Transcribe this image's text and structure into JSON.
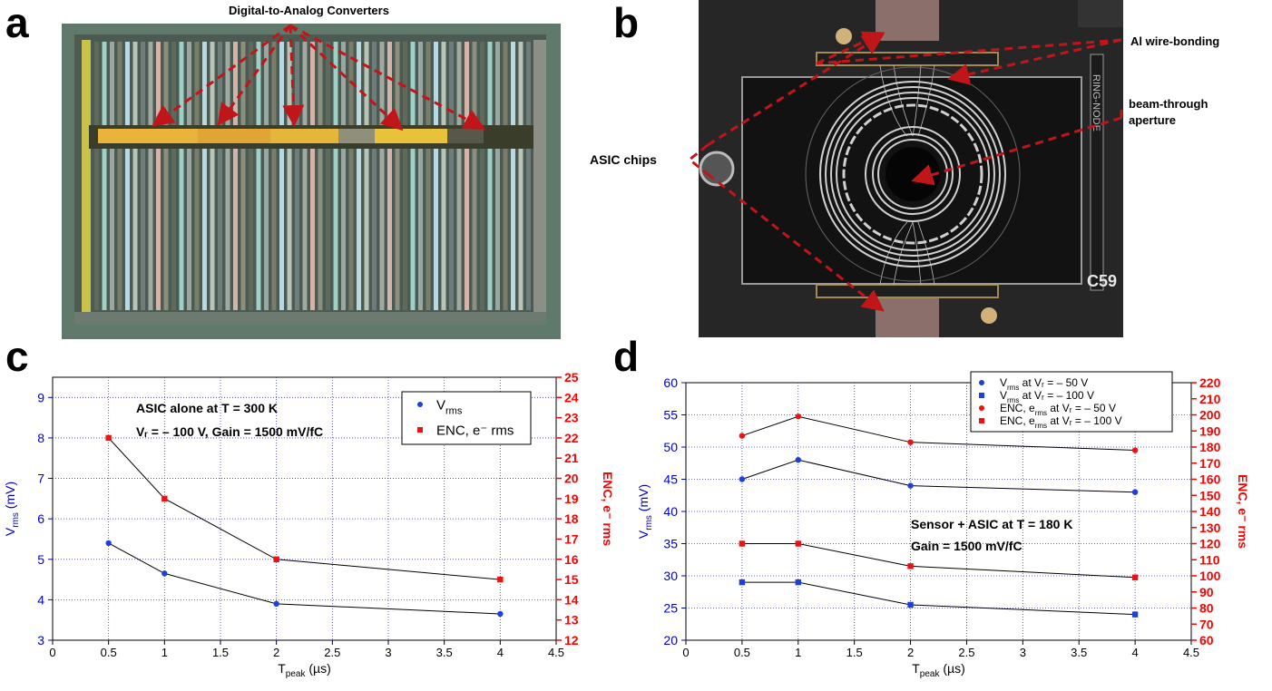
{
  "panels": {
    "a": {
      "letter": "a",
      "callout": "Digital-to-Analog Converters"
    },
    "b": {
      "letter": "b",
      "callouts": {
        "wire_bonding": "Al wire-bonding",
        "aperture": "beam-through aperture",
        "asic_chips": "ASIC chips"
      },
      "board_text": {
        "c59": "C59",
        "ring_node": "RING-NODE"
      }
    },
    "c": {
      "letter": "c",
      "annotations": {
        "line1": "ASIC alone at T = 300 K",
        "line2": "Vᵣ = – 100 V, Gain = 1500 mV/fC"
      }
    },
    "d": {
      "letter": "d",
      "annotations": {
        "line1": "Sensor + ASIC at T = 180 K",
        "line2": "Gain = 1500 mV/fC"
      }
    }
  },
  "colors": {
    "left_axis": "#0000cc",
    "right_axis": "#ff0000",
    "marker_blue": "#1f3fdd",
    "marker_red": "#ee1111",
    "grid": "#3333cc",
    "arrow": "#c0161a"
  },
  "chart_data": [
    {
      "id": "c",
      "type": "line",
      "x_label": "T",
      "x_label_sub": "peak",
      "x_label_unit": " (µs)",
      "y_label": "V",
      "y_label_sub": "rms",
      "y_label_unit": " (mV)",
      "y2_label": "ENC, e⁻ rms",
      "xlim": [
        0,
        4.5
      ],
      "ylim": [
        3,
        9.5
      ],
      "y2lim": [
        12,
        25
      ],
      "grid": true,
      "legend_position": "top-right",
      "x_ticks": [
        "0",
        "0.5",
        "1",
        "1.5",
        "2",
        "2.5",
        "3",
        "3.5",
        "4",
        "4.5"
      ],
      "y_ticks": [
        "3",
        "4",
        "5",
        "6",
        "7",
        "8",
        "9"
      ],
      "y2_ticks": [
        "12",
        "13",
        "14",
        "15",
        "16",
        "17",
        "18",
        "19",
        "20",
        "21",
        "22",
        "23",
        "24",
        "25"
      ],
      "series": [
        {
          "name": "V",
          "name_sub": "rms",
          "name_rest": "",
          "axis": "left",
          "marker": "circle",
          "color": "#1f3fdd",
          "x": [
            0.5,
            1,
            2,
            4
          ],
          "y": [
            5.4,
            4.65,
            3.9,
            3.65
          ]
        },
        {
          "name": "ENC, e⁻ rms",
          "name_sub": "",
          "name_rest": "",
          "axis": "right",
          "marker": "square",
          "color": "#ee1111",
          "x": [
            0.5,
            1,
            2,
            4
          ],
          "y": [
            22,
            19,
            16,
            15
          ]
        }
      ]
    },
    {
      "id": "d",
      "type": "line",
      "x_label": "T",
      "x_label_sub": "peak",
      "x_label_unit": " (µs)",
      "y_label": "V",
      "y_label_sub": "rms",
      "y_label_unit": " (mV)",
      "y2_label": "ENC, e⁻ rms",
      "xlim": [
        0,
        4.5
      ],
      "ylim": [
        20,
        60
      ],
      "y2lim": [
        60,
        220
      ],
      "grid": true,
      "legend_position": "top-right",
      "x_ticks": [
        "0",
        "0.5",
        "1",
        "1.5",
        "2",
        "2.5",
        "3",
        "3.5",
        "4",
        "4.5"
      ],
      "y_ticks": [
        "20",
        "25",
        "30",
        "35",
        "40",
        "45",
        "50",
        "55",
        "60"
      ],
      "y2_ticks": [
        "60",
        "70",
        "80",
        "90",
        "100",
        "110",
        "120",
        "130",
        "140",
        "150",
        "160",
        "170",
        "180",
        "190",
        "200",
        "210",
        "220"
      ],
      "series": [
        {
          "name": "V",
          "name_sub": "rms",
          "name_rest": " at Vᵣ = – 50 V",
          "axis": "left",
          "marker": "circle",
          "color": "#1f3fdd",
          "x": [
            0.5,
            1,
            2,
            4
          ],
          "y": [
            45,
            48,
            44,
            43
          ]
        },
        {
          "name": "V",
          "name_sub": "rms",
          "name_rest": " at Vᵣ = – 100 V",
          "axis": "left",
          "marker": "square",
          "color": "#1f3fdd",
          "x": [
            0.5,
            1,
            2,
            4
          ],
          "y": [
            29,
            29,
            25.5,
            24
          ]
        },
        {
          "name": "ENC, e",
          "name_sub": "rms",
          "name_rest": " at Vᵣ = – 50 V",
          "axis": "right",
          "marker": "circle",
          "color": "#ee1111",
          "x": [
            0.5,
            1,
            2,
            4
          ],
          "y": [
            187,
            199,
            183,
            178
          ]
        },
        {
          "name": "ENC, e",
          "name_sub": "rms",
          "name_rest": " at Vᵣ = – 100 V",
          "axis": "right",
          "marker": "square",
          "color": "#ee1111",
          "x": [
            0.5,
            1,
            2,
            4
          ],
          "y": [
            120,
            120,
            106,
            99
          ]
        }
      ]
    }
  ]
}
